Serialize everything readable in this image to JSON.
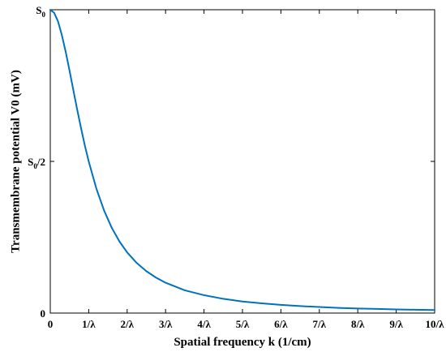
{
  "chart_data": {
    "type": "line",
    "xlabel": "Spatial frequency k (1/cm)",
    "ylabel": "Transmembrane potential V0 (mV)",
    "x_ticks": [
      "0",
      "1/λ",
      "2/λ",
      "3/λ",
      "4/λ",
      "5/λ",
      "6/λ",
      "7/λ",
      "8/λ",
      "9/λ",
      "10/λ"
    ],
    "y_ticks": [
      {
        "value": 0,
        "main": "0",
        "sub": "",
        "suffix": ""
      },
      {
        "value": 0.5,
        "main": "S",
        "sub": "0",
        "suffix": "/2"
      },
      {
        "value": 1,
        "main": "S",
        "sub": "0",
        "suffix": ""
      }
    ],
    "xlim": [
      0,
      10
    ],
    "ylim": [
      0,
      1
    ],
    "grid": false,
    "series": [
      {
        "color": "#0072BD",
        "x": [
          0,
          0.1,
          0.2,
          0.3,
          0.4,
          0.5,
          0.6,
          0.7,
          0.8,
          0.9,
          1.0,
          1.2,
          1.4,
          1.6,
          1.8,
          2.0,
          2.25,
          2.5,
          2.75,
          3.0,
          3.5,
          4.0,
          4.5,
          5.0,
          5.5,
          6.0,
          6.5,
          7.0,
          7.5,
          8.0,
          8.5,
          9.0,
          9.5,
          10.0
        ],
        "y": [
          1.0,
          0.99,
          0.962,
          0.917,
          0.862,
          0.8,
          0.735,
          0.671,
          0.61,
          0.552,
          0.5,
          0.41,
          0.338,
          0.281,
          0.236,
          0.2,
          0.165,
          0.138,
          0.117,
          0.1,
          0.075,
          0.059,
          0.047,
          0.038,
          0.032,
          0.027,
          0.023,
          0.02,
          0.017,
          0.015,
          0.0137,
          0.0122,
          0.011,
          0.0099
        ]
      }
    ]
  }
}
